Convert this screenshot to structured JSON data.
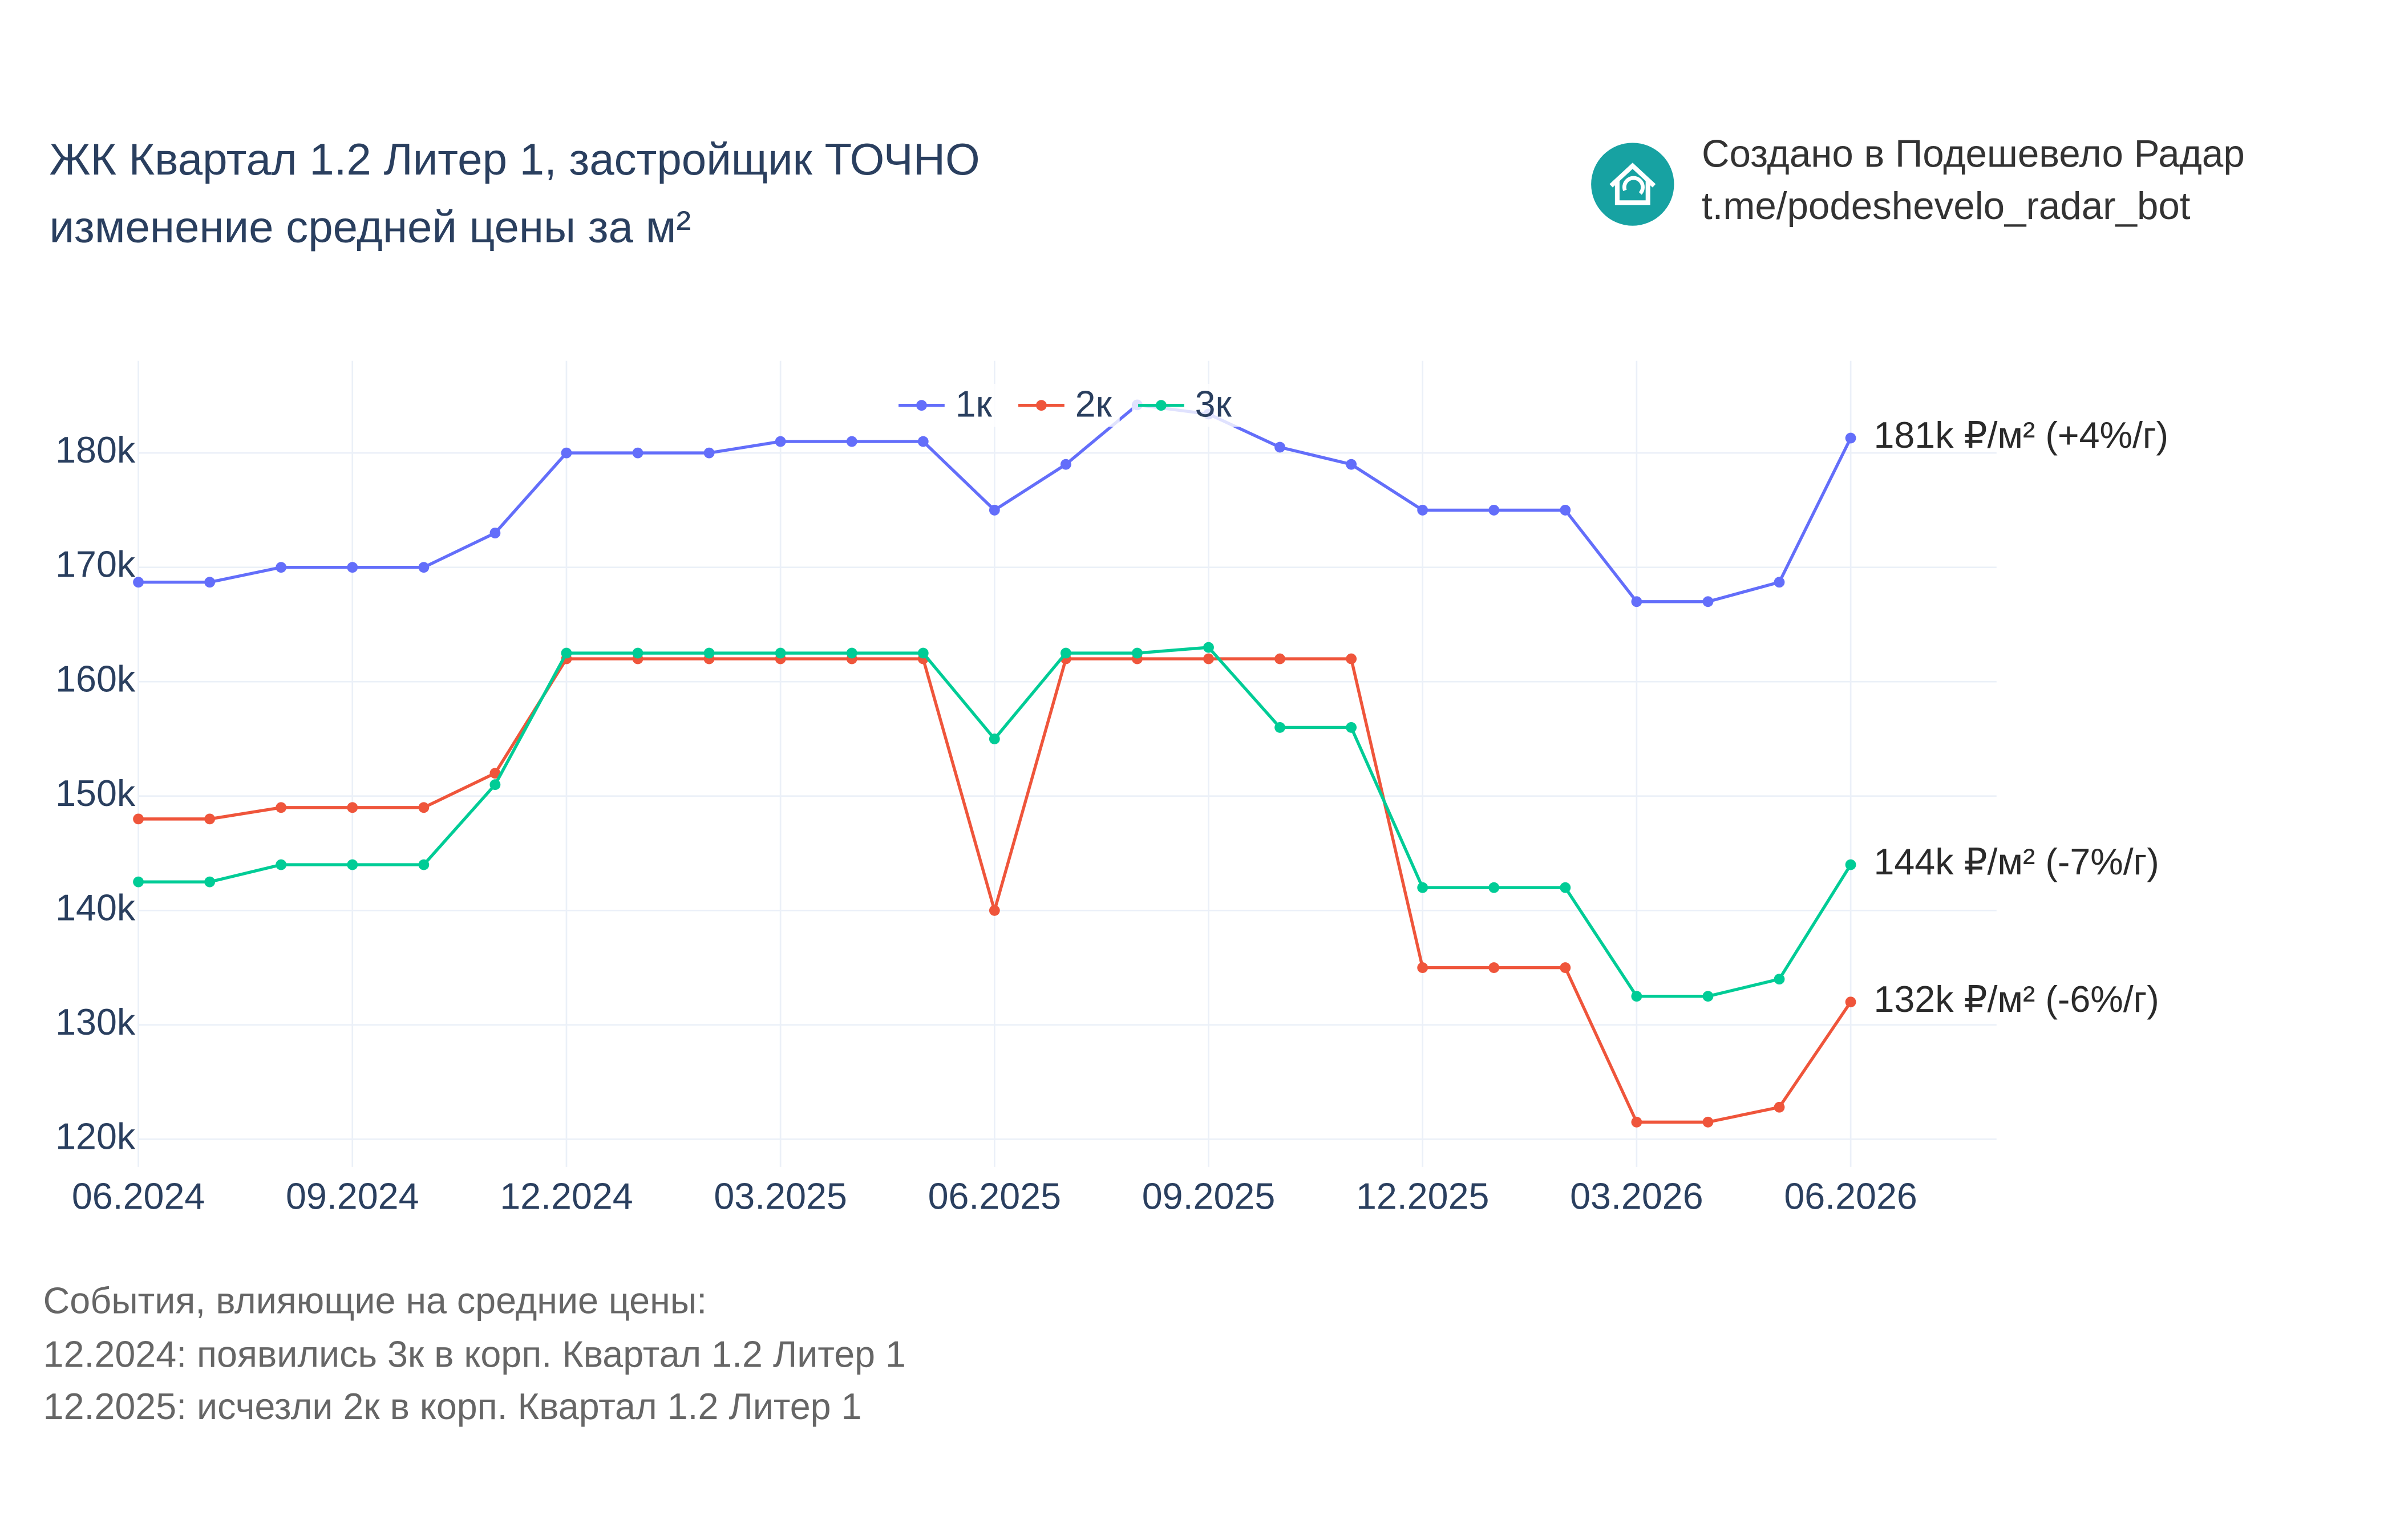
{
  "chart_data": {
    "type": "line",
    "title": "ЖК Квартал 1.2 Литер 1, застройщик ТОЧНО",
    "subtitle": "изменение средней цены за м²",
    "categories": [
      "06.2024",
      null,
      null,
      "09.2024",
      null,
      null,
      "12.2024",
      null,
      null,
      "03.2025",
      null,
      null,
      "06.2025",
      null,
      null,
      "09.2025",
      null,
      null,
      "12.2025",
      null,
      null,
      "03.2026",
      null,
      null,
      "06.2026"
    ],
    "series": [
      {
        "name": "1к",
        "color": "#636efa",
        "end_label": "181k ₽/м² (+4%/г)",
        "values": [
          168700,
          168700,
          170000,
          170000,
          170000,
          173000,
          180000,
          180000,
          180000,
          181000,
          181000,
          181000,
          175000,
          179000,
          184200,
          183400,
          180500,
          179000,
          175000,
          175000,
          175000,
          167000,
          167000,
          168700,
          181300
        ]
      },
      {
        "name": "2к",
        "color": "#EF553B",
        "end_label": "132k ₽/м² (-6%/г)",
        "values": [
          148000,
          148000,
          149000,
          149000,
          149000,
          152000,
          162000,
          162000,
          162000,
          162000,
          162000,
          162000,
          140000,
          162000,
          162000,
          162000,
          162000,
          162000,
          135000,
          135000,
          135000,
          121500,
          121500,
          122800,
          132000
        ]
      },
      {
        "name": "3к",
        "color": "#00cc96",
        "end_label": "144k ₽/м² (-7%/г)",
        "values": [
          142500,
          142500,
          144000,
          144000,
          144000,
          151000,
          162500,
          162500,
          162500,
          162500,
          162500,
          162500,
          155000,
          162500,
          162500,
          163000,
          156000,
          156000,
          142000,
          142000,
          142000,
          132500,
          132500,
          134000,
          144000
        ]
      }
    ],
    "ylim": [
      117000,
      188000
    ],
    "yticks": [
      {
        "value": 120000,
        "label": "120k"
      },
      {
        "value": 130000,
        "label": "130k"
      },
      {
        "value": 140000,
        "label": "140k"
      },
      {
        "value": 150000,
        "label": "150k"
      },
      {
        "value": 160000,
        "label": "160k"
      },
      {
        "value": 170000,
        "label": "170k"
      },
      {
        "value": 180000,
        "label": "180k"
      }
    ],
    "grid": true,
    "legend": "top",
    "branding": [
      "Создано в Подешевело Радар",
      "t.me/podeshevelo_radar_bot"
    ],
    "notes": [
      "События, влияющие на средние цены:",
      "12.2024: появились 3к в корп. Квартал 1.2 Литер 1",
      "12.2025: исчезли 2к в корп. Квартал 1.2 Литер 1"
    ]
  }
}
